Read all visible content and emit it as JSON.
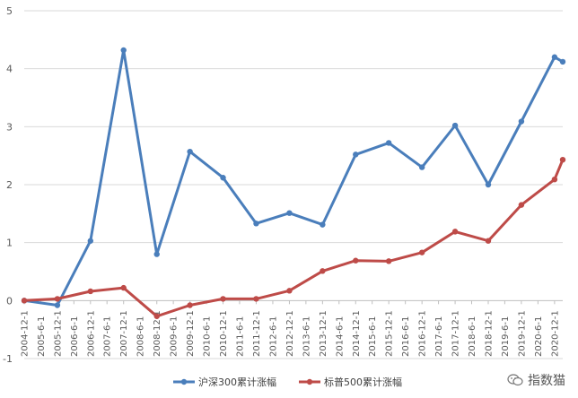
{
  "chart_data": {
    "type": "line",
    "title": "",
    "xlabel": "",
    "ylabel": "",
    "ylim": [
      -1,
      5
    ],
    "yticks": [
      -1,
      0,
      1,
      2,
      3,
      4,
      5
    ],
    "grid": "horizontal",
    "legend_position": "bottom",
    "x": [
      "2004-12-1",
      "2005-6-1",
      "2005-12-1",
      "2006-6-1",
      "2006-12-1",
      "2007-6-1",
      "2007-12-1",
      "2008-6-1",
      "2008-12-1",
      "2009-6-1",
      "2009-12-1",
      "2010-6-1",
      "2010-12-1",
      "2011-6-1",
      "2011-12-1",
      "2012-6-1",
      "2012-12-1",
      "2013-6-1",
      "2013-12-1",
      "2014-6-1",
      "2014-12-1",
      "2015-6-1",
      "2015-12-1",
      "2016-6-1",
      "2016-12-1",
      "2017-6-1",
      "2017-12-1",
      "2018-6-1",
      "2018-12-1",
      "2019-6-1",
      "2019-12-1",
      "2020-6-1",
      "2020-12-1"
    ],
    "series": [
      {
        "name": "沪深300累计涨幅",
        "color": "#4a7ebb",
        "points": [
          [
            "2004-12-1",
            0
          ],
          [
            "2005-12-1",
            -0.08
          ],
          [
            "2006-12-1",
            1.03
          ],
          [
            "2007-12-1",
            4.32
          ],
          [
            "2008-12-1",
            0.8
          ],
          [
            "2009-12-1",
            2.57
          ],
          [
            "2010-12-1",
            2.12
          ],
          [
            "2011-12-1",
            1.33
          ],
          [
            "2012-12-1",
            1.51
          ],
          [
            "2013-12-1",
            1.31
          ],
          [
            "2014-12-1",
            2.52
          ],
          [
            "2015-12-1",
            2.72
          ],
          [
            "2016-12-1",
            2.3
          ],
          [
            "2017-12-1",
            3.02
          ],
          [
            "2018-12-1",
            2.0
          ],
          [
            "2019-12-1",
            3.09
          ],
          [
            "2020-12-1",
            4.2
          ],
          [
            "2021-3-1",
            4.12
          ]
        ]
      },
      {
        "name": "标普500累计涨幅",
        "color": "#be4b48",
        "points": [
          [
            "2004-12-1",
            0
          ],
          [
            "2005-12-1",
            0.03
          ],
          [
            "2006-12-1",
            0.16
          ],
          [
            "2007-12-1",
            0.22
          ],
          [
            "2008-12-1",
            -0.27
          ],
          [
            "2009-12-1",
            -0.08
          ],
          [
            "2010-12-1",
            0.03
          ],
          [
            "2011-12-1",
            0.03
          ],
          [
            "2012-12-1",
            0.17
          ],
          [
            "2013-12-1",
            0.51
          ],
          [
            "2014-12-1",
            0.69
          ],
          [
            "2015-12-1",
            0.68
          ],
          [
            "2016-12-1",
            0.83
          ],
          [
            "2017-12-1",
            1.19
          ],
          [
            "2018-12-1",
            1.03
          ],
          [
            "2019-12-1",
            1.65
          ],
          [
            "2020-12-1",
            2.09
          ],
          [
            "2021-3-1",
            2.43
          ]
        ]
      }
    ]
  },
  "watermark": {
    "text": "指数猫",
    "icon": "wechat-icon"
  }
}
